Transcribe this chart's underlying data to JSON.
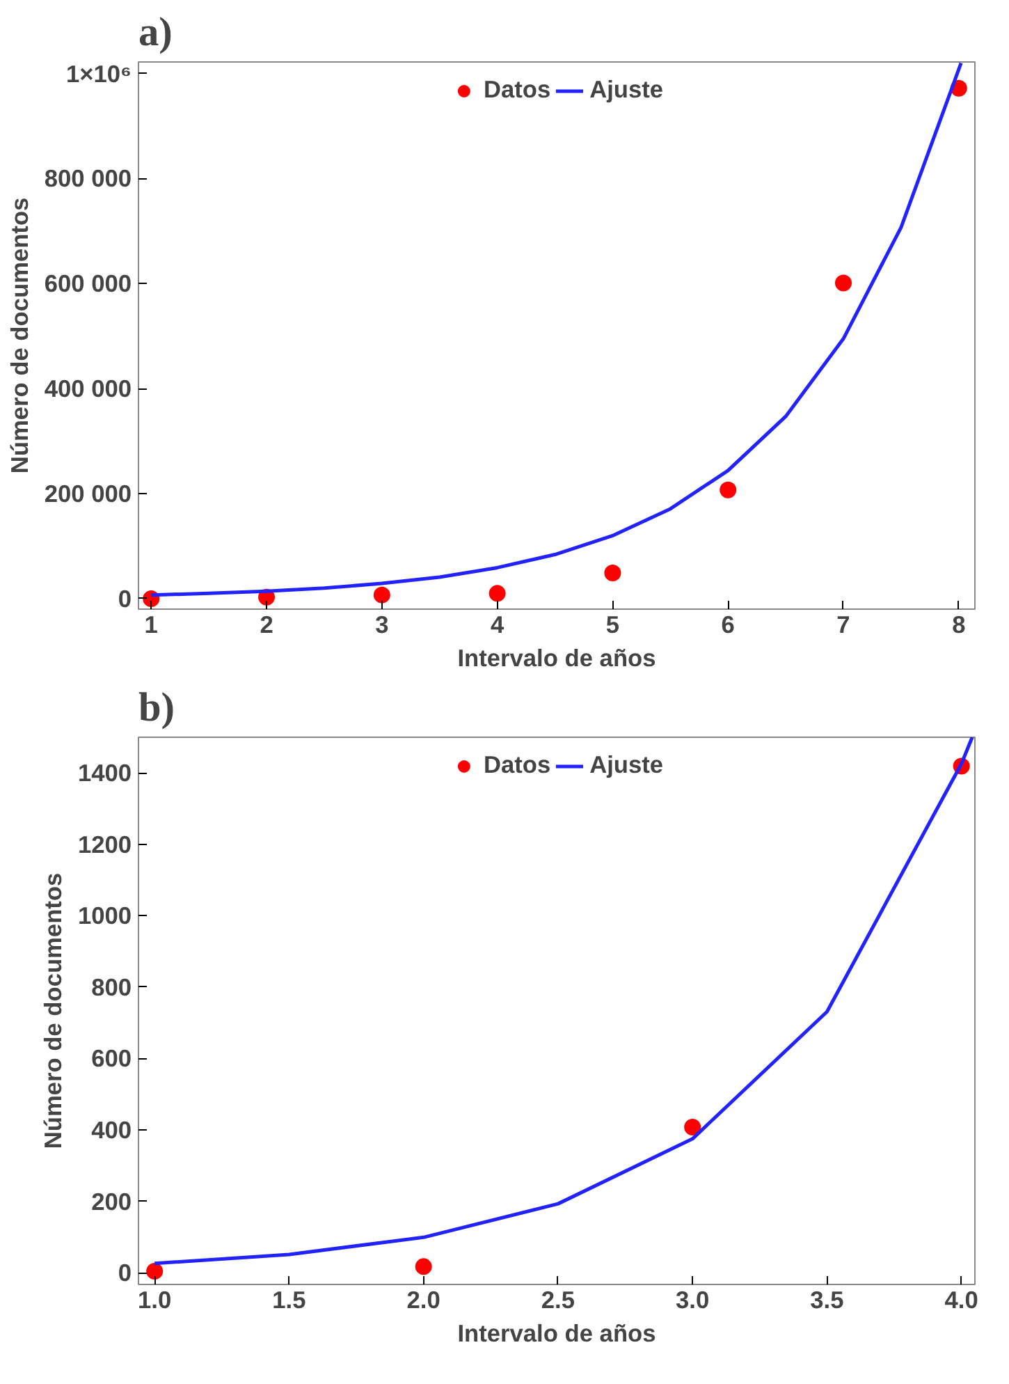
{
  "chart_data": [
    {
      "type": "scatter",
      "title": "a)",
      "xlabel": "Intervalo de años",
      "ylabel": "Número de documentos",
      "xlim": [
        0.89,
        8.14
      ],
      "ylim": [
        -20000,
        1022000
      ],
      "xticks": [
        1,
        2,
        3,
        4,
        5,
        6,
        7,
        8
      ],
      "yticks": [
        {
          "value": 0,
          "label": "0"
        },
        {
          "value": 200000,
          "label": "200 000"
        },
        {
          "value": 400000,
          "label": "400 000"
        },
        {
          "value": 600000,
          "label": "600 000"
        },
        {
          "value": 800000,
          "label": "800 000"
        },
        {
          "value": 1000000,
          "label": "1×10⁶"
        }
      ],
      "legend": "top",
      "grid": false,
      "series": [
        {
          "name": "Datos",
          "marker": "circle",
          "color": "#ff0000",
          "x": [
            1,
            2,
            3,
            4,
            5,
            6,
            7,
            8
          ],
          "values": [
            0,
            3000,
            7000,
            10000,
            49000,
            207000,
            601000,
            972000
          ]
        },
        {
          "name": "Ajuste",
          "type": "line",
          "color": "#2222ff",
          "x": [
            1,
            1.5,
            2,
            2.5,
            3,
            3.5,
            4,
            4.5,
            5,
            5.5,
            6,
            6.5,
            7,
            7.5,
            8,
            8.02
          ],
          "values": [
            7000,
            10000,
            14000,
            20000,
            29000,
            41000,
            59000,
            84000,
            120000,
            171000,
            244000,
            347000,
            495000,
            707000,
            1008000,
            1020000
          ]
        }
      ]
    },
    {
      "type": "scatter",
      "title": "b)",
      "xlabel": "Intervalo de años",
      "ylabel": "Número de documentos",
      "xlim": [
        0.94,
        4.05
      ],
      "ylim": [
        -33,
        1500
      ],
      "xticks": [
        {
          "value": 1,
          "label": "1.0"
        },
        {
          "value": 1.5,
          "label": "1.5"
        },
        {
          "value": 2,
          "label": "2.0"
        },
        {
          "value": 2.5,
          "label": "2.5"
        },
        {
          "value": 3,
          "label": "3.0"
        },
        {
          "value": 3.5,
          "label": "3.5"
        },
        {
          "value": 4,
          "label": "4.0"
        }
      ],
      "yticks": [
        0,
        200,
        400,
        600,
        800,
        1000,
        1200,
        1400
      ],
      "legend": "top",
      "grid": false,
      "series": [
        {
          "name": "Datos",
          "marker": "circle",
          "color": "#ff0000",
          "x": [
            1,
            2,
            3,
            4
          ],
          "values": [
            4,
            17,
            408,
            1419
          ]
        },
        {
          "name": "Ajuste",
          "type": "line",
          "color": "#2222ff",
          "x": [
            1,
            1.5,
            2,
            2.5,
            3,
            3.5,
            4,
            4.04
          ],
          "values": [
            26,
            51,
            99,
            193,
            375,
            731,
            1426,
            1500
          ]
        }
      ]
    }
  ]
}
